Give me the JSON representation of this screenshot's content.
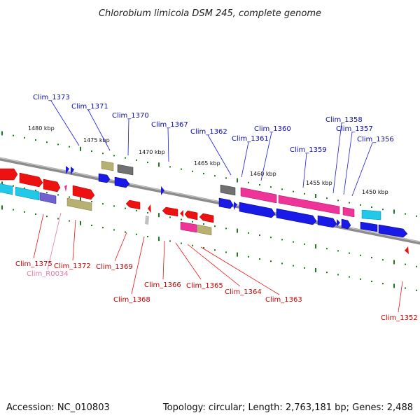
{
  "title": "Chlorobium limicola DSM 245, complete genome",
  "footer": {
    "accession": "Accession: NC_010803",
    "summary": "Topology: circular; Length: 2,763,181 bp; Genes: 2,488"
  },
  "scale_labels": [
    "1480 kbp",
    "1475 kbp",
    "1470 kbp",
    "1465 kbp",
    "1460 kbp",
    "1455 kbp",
    "1450 kbp"
  ],
  "top_labels": [
    "Clim_1373",
    "Clim_1371",
    "Clim_1370",
    "Clim_1367",
    "Clim_1362",
    "Clim_1361",
    "Clim_1360",
    "Clim_1359",
    "Clim_1358",
    "Clim_1357",
    "Clim_1356"
  ],
  "bottom_labels": [
    "Clim_1375",
    "Clim_R0034",
    "Clim_1372",
    "Clim_1369",
    "Clim_1368",
    "Clim_1366",
    "Clim_1365",
    "Clim_1364",
    "Clim_1363",
    "Clim_1352"
  ],
  "colors": {
    "backbone": "#8c8c8c",
    "forward_cds": "#1a1ae6",
    "reverse_cds": "#ee1111",
    "rna": "#ee3399",
    "cyan_feature": "#22c8e8",
    "olive_feature": "#b8b070",
    "gray_feature": "#707070",
    "purple_feature": "#7060d0",
    "ticks": "#1f7a1f"
  }
}
